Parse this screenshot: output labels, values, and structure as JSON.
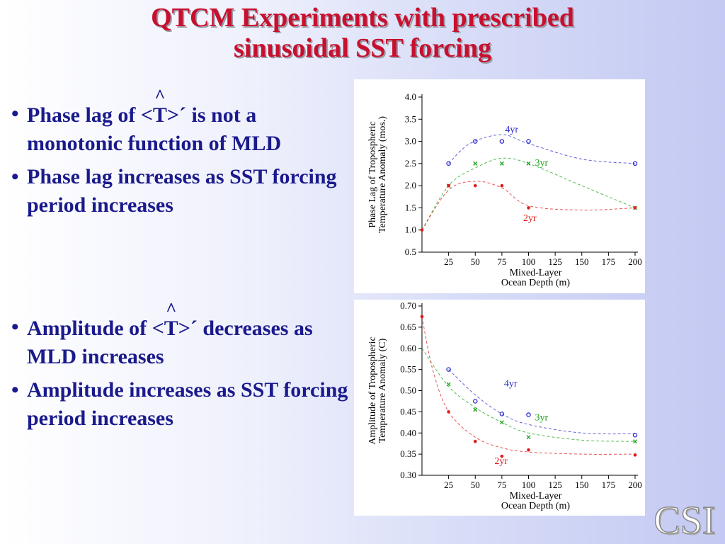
{
  "title": {
    "line1": "QTCM Experiments with prescribed",
    "line2": "sinusoidal SST forcing"
  },
  "bullets_top": [
    {
      "pre": "Phase lag of ",
      "t": "<T>",
      "hat": "^",
      "prime": "´",
      "post": " is not a monotonic function of MLD"
    },
    {
      "text": "Phase lag increases as SST forcing period increases"
    }
  ],
  "bullets_bottom": [
    {
      "pre": "Amplitude of ",
      "t": "<T>",
      "hat": "^",
      "prime": "´",
      "post": " decreases as MLD increases"
    },
    {
      "text": "Amplitude increases as SST forcing period increases"
    }
  ],
  "logo_text": "CSI",
  "colors": {
    "title": "#c8102e",
    "bullet_text": "#1a1a8c",
    "series_4yr": "#2b2bd0",
    "series_3yr": "#1aa31a",
    "series_2yr": "#e01a1a"
  },
  "chart_data": [
    {
      "type": "scatter",
      "ylabel": [
        "Phase Lag of Tropospheric",
        "Temperature Anomaly (mos.)"
      ],
      "xlabel": [
        "Mixed-Layer",
        "Ocean Depth (m)"
      ],
      "xlim": [
        0,
        200
      ],
      "ylim": [
        0.5,
        4.0
      ],
      "xticks": [
        25,
        50,
        75,
        100,
        125,
        150,
        175,
        200
      ],
      "yticks": [
        0.5,
        1.0,
        1.5,
        2.0,
        2.5,
        3.0,
        3.5,
        4.0
      ],
      "ytick_labels": [
        "0.5",
        "1.0",
        "1.5",
        "2.0",
        "2.5",
        "3.0",
        "3.5",
        "4.0"
      ],
      "series": [
        {
          "name": "4yr",
          "marker": "circle",
          "color": "#2b2bd0",
          "x": [
            25,
            50,
            75,
            100,
            200
          ],
          "y": [
            2.5,
            3.0,
            3.0,
            3.0,
            2.5
          ],
          "fit": [
            [
              25,
              2.5
            ],
            [
              45,
              2.95
            ],
            [
              75,
              3.15
            ],
            [
              100,
              2.95
            ],
            [
              150,
              2.6
            ],
            [
              200,
              2.5
            ]
          ]
        },
        {
          "name": "3yr",
          "marker": "x",
          "color": "#1aa31a",
          "x": [
            25,
            50,
            75,
            100,
            200
          ],
          "y": [
            2.0,
            2.5,
            2.5,
            2.5,
            1.5
          ],
          "fit": [
            [
              0,
              1.0
            ],
            [
              25,
              2.0
            ],
            [
              50,
              2.4
            ],
            [
              75,
              2.62
            ],
            [
              100,
              2.5
            ],
            [
              150,
              2.0
            ],
            [
              200,
              1.5
            ]
          ]
        },
        {
          "name": "2yr",
          "marker": "dot",
          "color": "#e01a1a",
          "x": [
            0,
            25,
            50,
            75,
            100,
            200
          ],
          "y": [
            1.0,
            2.0,
            2.0,
            2.0,
            1.5,
            1.5
          ],
          "fit": [
            [
              0,
              1.0
            ],
            [
              25,
              1.9
            ],
            [
              50,
              2.1
            ],
            [
              75,
              1.95
            ],
            [
              100,
              1.55
            ],
            [
              150,
              1.45
            ],
            [
              200,
              1.5
            ]
          ]
        }
      ],
      "labels": [
        {
          "text": "4yr",
          "x": 78,
          "y": 3.2,
          "color": "#2b2bd0"
        },
        {
          "text": "3yr",
          "x": 106,
          "y": 2.45,
          "color": "#1aa31a"
        },
        {
          "text": "2yr",
          "x": 95,
          "y": 1.2,
          "color": "#e01a1a"
        }
      ]
    },
    {
      "type": "scatter",
      "ylabel": [
        "Amplitude of Tropospheric",
        "Temperature Anomaly (C)"
      ],
      "xlabel": [
        "Mixed-Layer",
        "Ocean Depth (m)"
      ],
      "xlim": [
        0,
        200
      ],
      "ylim": [
        0.3,
        0.7
      ],
      "xticks": [
        25,
        50,
        75,
        100,
        125,
        150,
        175,
        200
      ],
      "yticks": [
        0.3,
        0.35,
        0.4,
        0.45,
        0.5,
        0.55,
        0.6,
        0.65,
        0.7
      ],
      "ytick_labels": [
        "0.30",
        "0.35",
        "0.40",
        "0.45",
        "0.50",
        "0.55",
        "0.60",
        "0.65",
        "0.70"
      ],
      "series": [
        {
          "name": "4yr",
          "marker": "circle",
          "color": "#2b2bd0",
          "x": [
            25,
            50,
            75,
            100,
            200
          ],
          "y": [
            0.55,
            0.475,
            0.445,
            0.443,
            0.395
          ],
          "fit": [
            [
              25,
              0.55
            ],
            [
              50,
              0.49
            ],
            [
              75,
              0.445
            ],
            [
              100,
              0.42
            ],
            [
              150,
              0.4
            ],
            [
              200,
              0.398
            ]
          ]
        },
        {
          "name": "3yr",
          "marker": "x",
          "color": "#1aa31a",
          "x": [
            25,
            50,
            75,
            100,
            200
          ],
          "y": [
            0.515,
            0.455,
            0.425,
            0.39,
            0.38
          ],
          "fit": [
            [
              0,
              0.6
            ],
            [
              25,
              0.51
            ],
            [
              50,
              0.46
            ],
            [
              75,
              0.425
            ],
            [
              100,
              0.4
            ],
            [
              150,
              0.383
            ],
            [
              200,
              0.38
            ]
          ]
        },
        {
          "name": "2yr",
          "marker": "dot",
          "color": "#e01a1a",
          "x": [
            0,
            25,
            50,
            75,
            100,
            200
          ],
          "y": [
            0.675,
            0.45,
            0.38,
            0.345,
            0.36,
            0.348
          ],
          "fit": [
            [
              0,
              0.675
            ],
            [
              10,
              0.55
            ],
            [
              25,
              0.45
            ],
            [
              50,
              0.39
            ],
            [
              75,
              0.365
            ],
            [
              100,
              0.355
            ],
            [
              150,
              0.35
            ],
            [
              200,
              0.35
            ]
          ]
        }
      ],
      "labels": [
        {
          "text": "4yr",
          "x": 77,
          "y": 0.51,
          "color": "#2b2bd0"
        },
        {
          "text": "3yr",
          "x": 106,
          "y": 0.43,
          "color": "#1aa31a"
        },
        {
          "text": "2yr",
          "x": 68,
          "y": 0.327,
          "color": "#e01a1a"
        }
      ]
    }
  ]
}
